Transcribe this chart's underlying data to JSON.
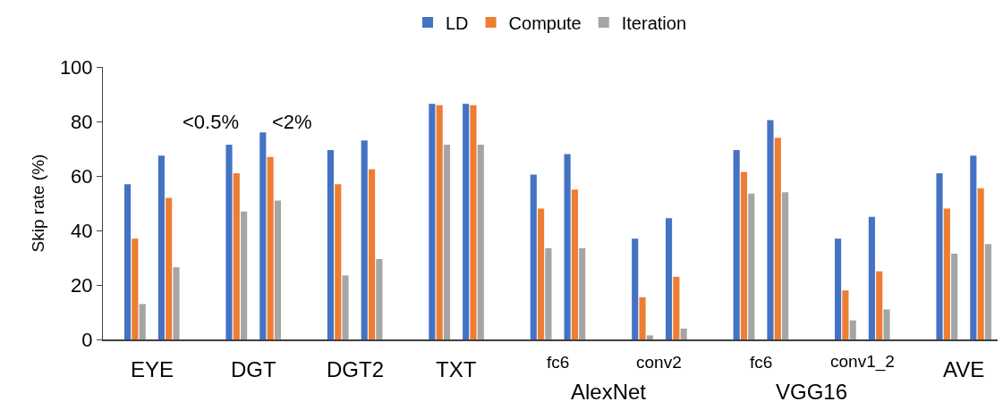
{
  "chart_data": {
    "type": "bar",
    "categories": [
      "EYE",
      "DGT",
      "DGT2",
      "TXT",
      "fc6",
      "conv2",
      "fc6",
      "conv1_2",
      "AVE"
    ],
    "series": [
      {
        "name": "LD",
        "color": "#4472c4",
        "values": [
          57,
          71.5,
          69.5,
          86.5,
          60.5,
          37,
          69.5,
          37,
          61
        ]
      },
      {
        "name": "Compute",
        "color": "#ed7d31",
        "values": [
          37,
          61,
          57,
          86,
          48,
          15.5,
          61.5,
          18,
          48
        ]
      },
      {
        "name": "Iteration",
        "color": "#a5a5a5",
        "values": [
          13,
          47,
          23.5,
          71.5,
          33.5,
          1.5,
          53.5,
          7,
          31.5
        ]
      },
      {
        "color": "#4472c4",
        "values": [
          67.5,
          76,
          73,
          86.5,
          68,
          44.5,
          80.5,
          45,
          67.5
        ]
      },
      {
        "color": "#ed7d31",
        "values": [
          52,
          67,
          62.5,
          86,
          55,
          23,
          74,
          25,
          55.5
        ]
      },
      {
        "color": "#a5a5a5",
        "values": [
          26.5,
          51,
          29.5,
          71.5,
          33.5,
          4,
          54,
          11,
          35
        ]
      }
    ],
    "ylabel": "Skip rate (%)",
    "ylim": [
      0,
      100
    ],
    "yticks": [
      0,
      20,
      40,
      60,
      80,
      100
    ],
    "annotations": [
      "<0.5%",
      "<2%",
      "AlexNet",
      "VGG16"
    ],
    "legend": "top"
  }
}
